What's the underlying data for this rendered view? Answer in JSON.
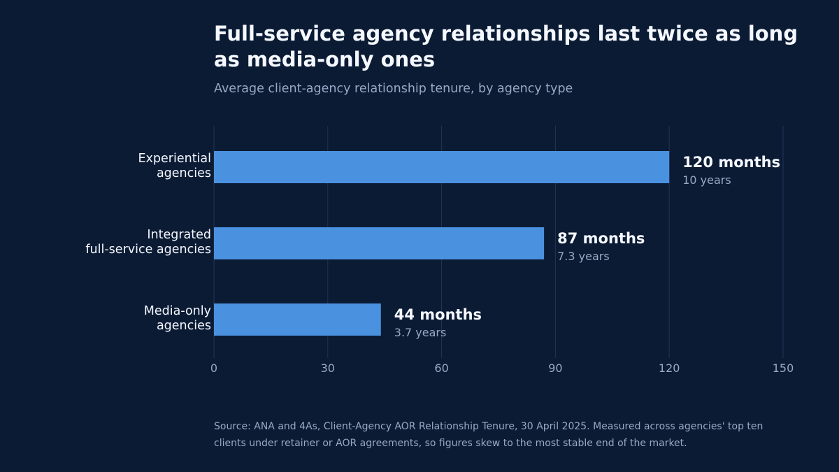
{
  "title": "Full-service agency relationships last twice as long as media-only ones",
  "subtitle": "Average client-agency relationship tenure, by agency type",
  "source": "Source: ANA and 4As, Client-Agency AOR Relationship Tenure, 30 April 2025. Measured across agencies' top ten clients under retainer or AOR agreements, so figures skew to the most stable end of the market.",
  "colors": {
    "background": "#0b1b34",
    "bar": "#4a92e0",
    "gridline": "#223456",
    "muted_text": "#98a9c6"
  },
  "chart_data": {
    "type": "bar",
    "orientation": "horizontal",
    "categories": [
      [
        "Experiential",
        "agencies"
      ],
      [
        "Integrated",
        "full-service agencies"
      ],
      [
        "Media-only",
        "agencies"
      ]
    ],
    "values": [
      120,
      87,
      44
    ],
    "value_labels": [
      "120 months",
      "87 months",
      "44 months"
    ],
    "secondary_labels": [
      "10 years",
      "7.3 years",
      "3.7 years"
    ],
    "xlim": [
      0,
      150
    ],
    "xticks": [
      0,
      30,
      60,
      90,
      120,
      150
    ],
    "grid": true,
    "xlabel": "",
    "ylabel": ""
  }
}
